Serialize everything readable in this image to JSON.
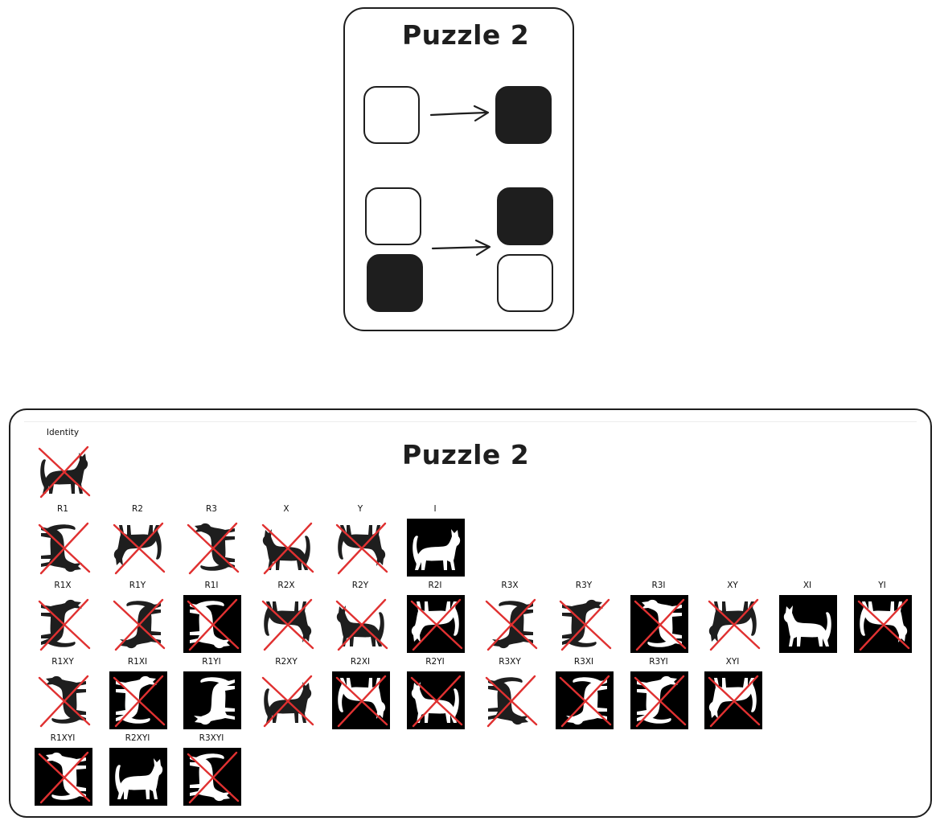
{
  "top_panel": {
    "title": "Puzzle 2",
    "rows": [
      {
        "input": [
          "white"
        ],
        "output": [
          "dark"
        ]
      },
      {
        "input": [
          "white",
          "dark"
        ],
        "output": [
          "dark",
          "white"
        ]
      }
    ]
  },
  "results_panel": {
    "title": "Puzzle 2",
    "identity": {
      "label": "Identity",
      "inverted": false,
      "transform": "",
      "crossed": true
    },
    "rows": [
      [
        {
          "label": "R1",
          "inverted": false,
          "transform": "R1",
          "crossed": true
        },
        {
          "label": "R2",
          "inverted": false,
          "transform": "R2",
          "crossed": true
        },
        {
          "label": "R3",
          "inverted": false,
          "transform": "R3",
          "crossed": true
        },
        {
          "label": "X",
          "inverted": false,
          "transform": "X",
          "crossed": true
        },
        {
          "label": "Y",
          "inverted": false,
          "transform": "Y",
          "crossed": true
        },
        {
          "label": "I",
          "inverted": true,
          "transform": "",
          "crossed": false
        }
      ],
      [
        {
          "label": "R1X",
          "inverted": false,
          "transform": "R1X",
          "crossed": true
        },
        {
          "label": "R1Y",
          "inverted": false,
          "transform": "R1Y",
          "crossed": true
        },
        {
          "label": "R1I",
          "inverted": true,
          "transform": "R1",
          "crossed": true
        },
        {
          "label": "R2X",
          "inverted": false,
          "transform": "R2X",
          "crossed": true
        },
        {
          "label": "R2Y",
          "inverted": false,
          "transform": "R2Y",
          "crossed": true
        },
        {
          "label": "R2I",
          "inverted": true,
          "transform": "R2",
          "crossed": true
        },
        {
          "label": "R3X",
          "inverted": false,
          "transform": "R3X",
          "crossed": true
        },
        {
          "label": "R3Y",
          "inverted": false,
          "transform": "R3Y",
          "crossed": true
        },
        {
          "label": "R3I",
          "inverted": true,
          "transform": "R3",
          "crossed": true
        },
        {
          "label": "XY",
          "inverted": false,
          "transform": "XY",
          "crossed": true
        },
        {
          "label": "XI",
          "inverted": true,
          "transform": "X",
          "crossed": false
        },
        {
          "label": "YI",
          "inverted": true,
          "transform": "Y",
          "crossed": true
        }
      ],
      [
        {
          "label": "R1XY",
          "inverted": false,
          "transform": "R1XY",
          "crossed": true
        },
        {
          "label": "R1XI",
          "inverted": true,
          "transform": "R1X",
          "crossed": true
        },
        {
          "label": "R1YI",
          "inverted": true,
          "transform": "R1Y",
          "crossed": false
        },
        {
          "label": "R2XY",
          "inverted": false,
          "transform": "R2XY",
          "crossed": true
        },
        {
          "label": "R2XI",
          "inverted": true,
          "transform": "R2X",
          "crossed": true
        },
        {
          "label": "R2YI",
          "inverted": true,
          "transform": "R2Y",
          "crossed": true
        },
        {
          "label": "R3XY",
          "inverted": false,
          "transform": "R3XY",
          "crossed": true
        },
        {
          "label": "R3XI",
          "inverted": true,
          "transform": "R3X",
          "crossed": true
        },
        {
          "label": "R3YI",
          "inverted": true,
          "transform": "R3Y",
          "crossed": true
        },
        {
          "label": "XYI",
          "inverted": true,
          "transform": "XY",
          "crossed": true
        }
      ],
      [
        {
          "label": "R1XYI",
          "inverted": true,
          "transform": "R1XY",
          "crossed": true
        },
        {
          "label": "R2XYI",
          "inverted": true,
          "transform": "R2XY",
          "crossed": false
        },
        {
          "label": "R3XYI",
          "inverted": true,
          "transform": "R3XY",
          "crossed": true
        }
      ]
    ]
  },
  "colors": {
    "ink": "#1e1e1e",
    "cross": "#e03131",
    "thumb_bg": "#000000",
    "thumb_fg": "#ffffff"
  },
  "icons": {
    "thumbnail": "cat-silhouette-icon",
    "rejection": "red-x-cross-icon",
    "arrow": "right-arrow-icon"
  }
}
